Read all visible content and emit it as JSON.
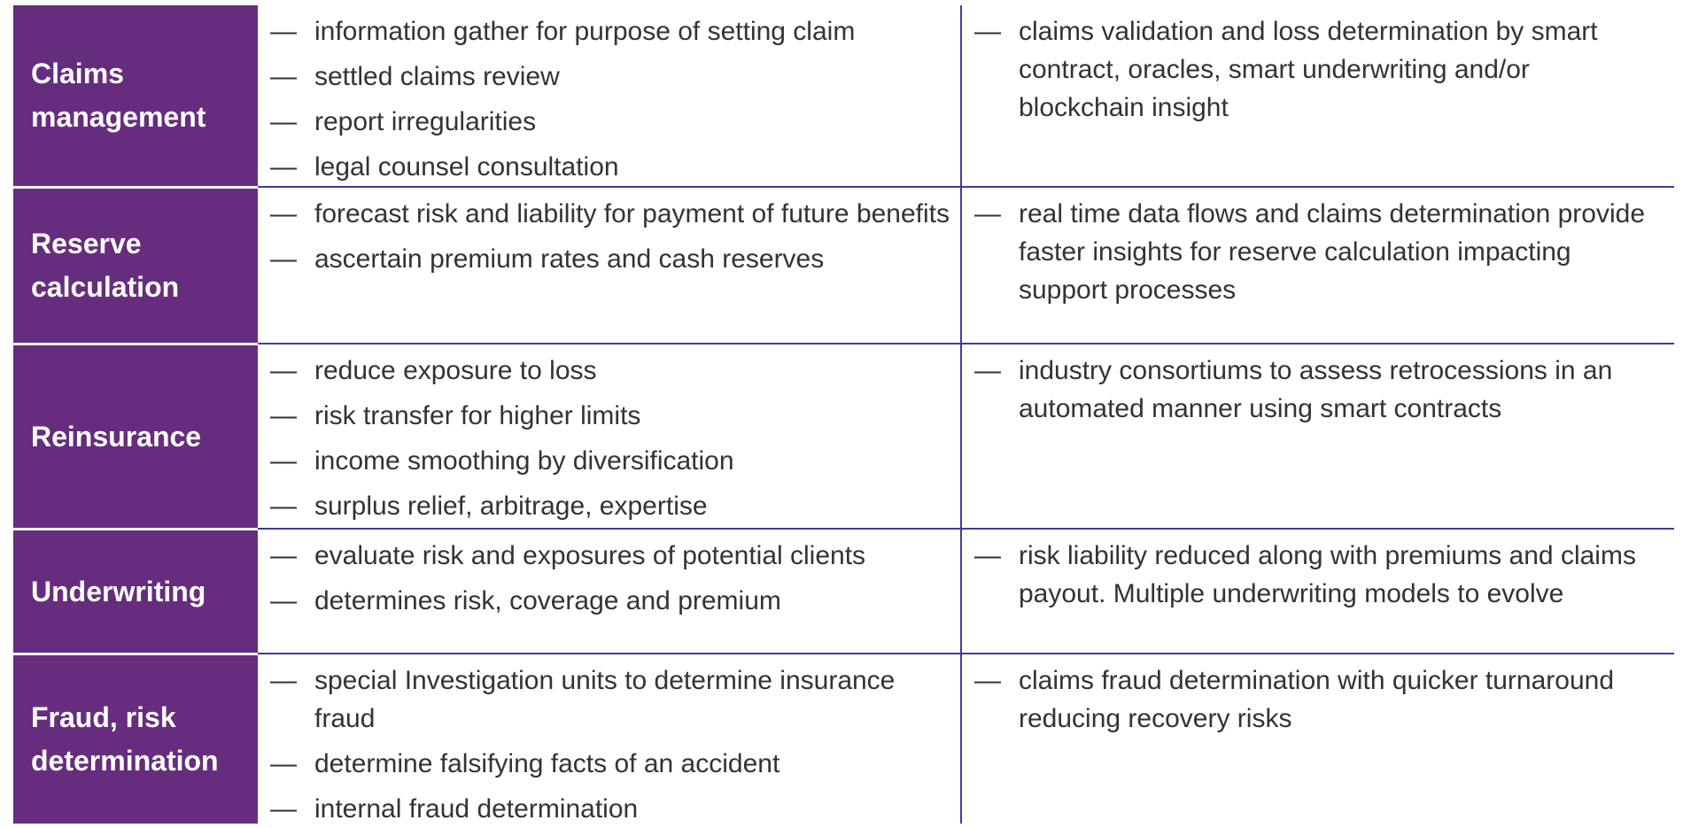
{
  "rows": [
    {
      "label": "Claims management",
      "current": [
        "information gather for purpose of setting claim",
        "settled claims review",
        "report irregularities",
        "legal counsel consultation"
      ],
      "future": [
        "claims validation and loss determination by smart contract, oracles, smart underwriting and/or blockchain insight"
      ]
    },
    {
      "label": "Reserve calculation",
      "current": [
        "forecast risk and liability for payment of future benefits",
        "ascertain premium rates and cash reserves"
      ],
      "future": [
        "real time data flows and claims determination provide faster insights for reserve calculation impacting support processes"
      ]
    },
    {
      "label": "Reinsurance",
      "current": [
        "reduce exposure to loss",
        "risk transfer for higher limits",
        "income smoothing by diversification",
        "surplus relief, arbitrage, expertise"
      ],
      "future": [
        "industry consortiums to assess retrocessions in an automated manner using smart contracts"
      ]
    },
    {
      "label": "Underwriting",
      "current": [
        "evaluate risk and exposures of potential clients",
        "determines risk, coverage and premium"
      ],
      "future": [
        "risk liability reduced along with premiums and claims payout. Multiple underwriting models to evolve"
      ]
    },
    {
      "label": "Fraud, risk determination",
      "current": [
        "special Investigation units to determine insurance fraud",
        "determine falsifying facts of an accident",
        "internal fraud determination"
      ],
      "future": [
        "claims fraud determination with quicker turnaround reducing recovery risks"
      ]
    }
  ],
  "bullet_glyph": "—",
  "colors": {
    "label_background": "#662d7e",
    "label_text": "#ffffff",
    "divider": "#3d3f94",
    "body_text": "#333333"
  }
}
